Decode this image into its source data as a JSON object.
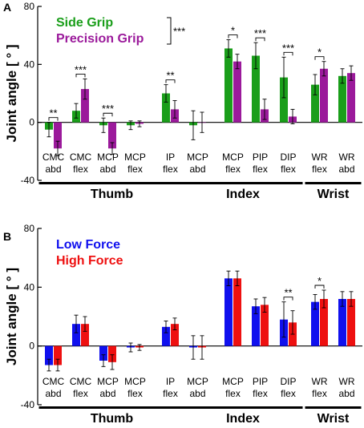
{
  "chart_data": [
    {
      "type": "bar",
      "panel": "A",
      "ylabel": "Joint angle [ ° ]",
      "ylim": [
        -40,
        80
      ],
      "yticks": [
        -40,
        0,
        40,
        80
      ],
      "categories": [
        [
          "CMC",
          "abd"
        ],
        [
          "CMC",
          "flex"
        ],
        [
          "MCP",
          "abd"
        ],
        [
          "MCP",
          "flex"
        ],
        [
          "IP",
          "flex"
        ],
        [
          "MCP",
          "abd"
        ],
        [
          "MCP",
          "flex"
        ],
        [
          "PIP",
          "flex"
        ],
        [
          "DIP",
          "flex"
        ],
        [
          "WR",
          "flex"
        ],
        [
          "WR",
          "abd"
        ]
      ],
      "groups": [
        {
          "label": "Thumb",
          "from": 0,
          "to": 4
        },
        {
          "label": "Index",
          "from": 5,
          "to": 8
        },
        {
          "label": "Wrist",
          "from": 9,
          "to": 10
        }
      ],
      "series": [
        {
          "name": "Side Grip",
          "color": "#1a9e1a",
          "values": [
            -5,
            8,
            -2,
            -2,
            20,
            -2,
            51,
            46,
            31,
            26,
            32
          ],
          "errors": [
            5,
            5,
            5,
            3,
            6,
            10,
            6,
            9,
            14,
            7,
            5
          ]
        },
        {
          "name": "Precision Grip",
          "color": "#9b1a9b",
          "values": [
            -18,
            23,
            -18,
            -1,
            9,
            0,
            42,
            9,
            4,
            37,
            34
          ],
          "errors": [
            5,
            7,
            4,
            2,
            6,
            7,
            5,
            7,
            5,
            5,
            5
          ]
        }
      ],
      "significance": [
        {
          "index": 0,
          "label": "**"
        },
        {
          "index": 1,
          "label": "***"
        },
        {
          "index": 2,
          "label": "***"
        },
        {
          "index": 4,
          "label": "**"
        },
        {
          "index": 6,
          "label": "*"
        },
        {
          "index": 7,
          "label": "***"
        },
        {
          "index": 8,
          "label": "***"
        },
        {
          "index": 9,
          "label": "*"
        }
      ],
      "legend_significance": "***",
      "legend_placement": "top-left"
    },
    {
      "type": "bar",
      "panel": "B",
      "ylabel": "Joint angle [ ° ]",
      "ylim": [
        -40,
        80
      ],
      "yticks": [
        -40,
        0,
        40,
        80
      ],
      "categories": [
        [
          "CMC",
          "abd"
        ],
        [
          "CMC",
          "flex"
        ],
        [
          "MCP",
          "abd"
        ],
        [
          "MCP",
          "flex"
        ],
        [
          "IP",
          "flex"
        ],
        [
          "MCP",
          "abd"
        ],
        [
          "MCP",
          "flex"
        ],
        [
          "PIP",
          "flex"
        ],
        [
          "DIP",
          "flex"
        ],
        [
          "WR",
          "flex"
        ],
        [
          "WR",
          "abd"
        ]
      ],
      "groups": [
        {
          "label": "Thumb",
          "from": 0,
          "to": 4
        },
        {
          "label": "Index",
          "from": 5,
          "to": 8
        },
        {
          "label": "Wrist",
          "from": 9,
          "to": 10
        }
      ],
      "series": [
        {
          "name": "Low Force",
          "color": "#1010ee",
          "values": [
            -13,
            15,
            -10,
            -1,
            13,
            -1,
            46,
            27,
            18,
            30,
            32
          ],
          "errors": [
            4,
            6,
            4,
            3,
            4,
            8,
            5,
            5,
            12,
            5,
            5
          ]
        },
        {
          "name": "High Force",
          "color": "#ee1010",
          "values": [
            -13,
            15,
            -11,
            -1,
            15,
            -1,
            46,
            28,
            16,
            32,
            32
          ],
          "errors": [
            4,
            5,
            5,
            2,
            4,
            8,
            5,
            5,
            8,
            6,
            5
          ]
        }
      ],
      "significance": [
        {
          "index": 8,
          "label": "**"
        },
        {
          "index": 9,
          "label": "*"
        }
      ],
      "legend_placement": "top-left"
    }
  ]
}
